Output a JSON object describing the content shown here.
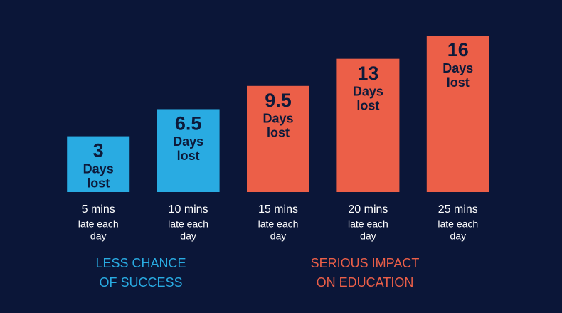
{
  "chart_data": {
    "type": "bar",
    "categories": [
      "5 mins",
      "10 mins",
      "15 mins",
      "20 mins",
      "25 mins"
    ],
    "category_note": [
      "late each",
      "day"
    ],
    "values": [
      3,
      6.5,
      9.5,
      13,
      16
    ],
    "value_unit": [
      "Days",
      "lost"
    ],
    "colors": [
      "#29abe2",
      "#29abe2",
      "#ec5f48",
      "#ec5f48",
      "#ec5f48"
    ],
    "ylim": [
      -4.2,
      16
    ],
    "annotations": [
      {
        "text": [
          "LESS CHANCE",
          "OF SUCCESS"
        ],
        "color": "#29abe2"
      },
      {
        "text": [
          "SERIOUS IMPACT",
          "ON EDUCATION"
        ],
        "color": "#ec5f48"
      }
    ]
  }
}
